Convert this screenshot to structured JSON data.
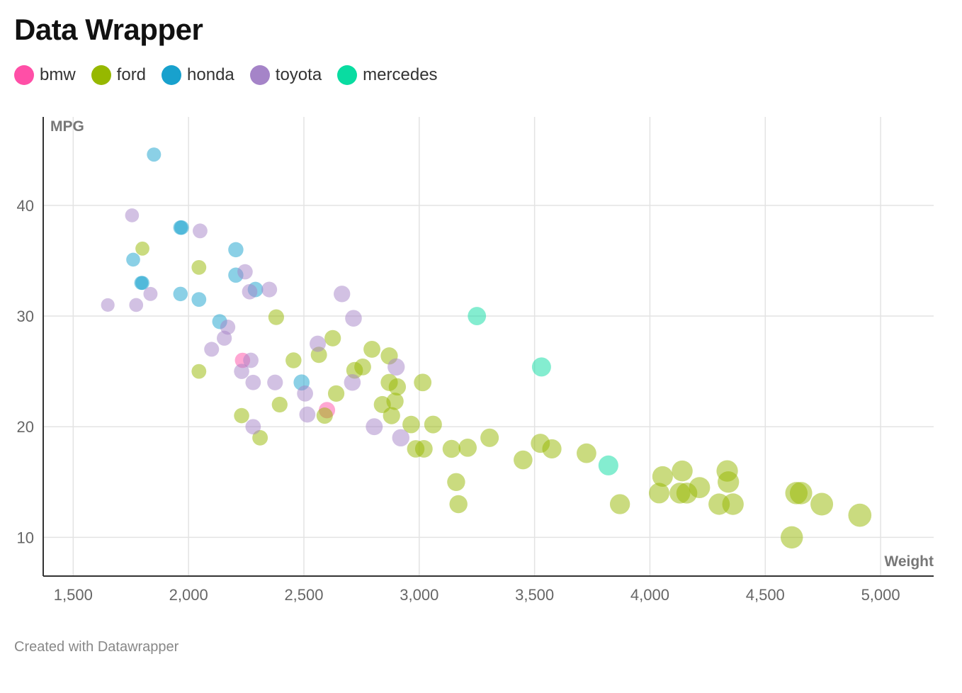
{
  "header": {
    "title": "Data Wrapper"
  },
  "legend": [
    {
      "label": "bmw",
      "color": "#ff4fa7"
    },
    {
      "label": "ford",
      "color": "#96b800"
    },
    {
      "label": "honda",
      "color": "#18a1cd"
    },
    {
      "label": "toyota",
      "color": "#a584c8"
    },
    {
      "label": "mercedes",
      "color": "#09dca1"
    }
  ],
  "footer": {
    "credit": "Created with Datawrapper"
  },
  "chart_data": {
    "type": "scatter",
    "title": "Data Wrapper",
    "xlabel": "Weight",
    "ylabel": "MPG",
    "xlim": [
      1370,
      5230
    ],
    "ylim": [
      6.5,
      48
    ],
    "xticks": [
      1500,
      2000,
      2500,
      3000,
      3500,
      4000,
      4500,
      5000
    ],
    "xtick_labels": [
      "1,500",
      "2,000",
      "2,500",
      "3,000",
      "3,500",
      "4,000",
      "4,500",
      "5,000"
    ],
    "yticks": [
      10,
      20,
      30,
      40
    ],
    "ytick_labels": [
      "10",
      "20",
      "30",
      "40"
    ],
    "grid": true,
    "legend_position": "top-left",
    "series": [
      {
        "name": "bmw",
        "color": "#ff4fa7",
        "points": [
          [
            2234,
            26
          ],
          [
            2600,
            21.5
          ]
        ]
      },
      {
        "name": "ford",
        "color": "#96b800",
        "points": [
          [
            1800,
            36.1
          ],
          [
            2045,
            34.4
          ],
          [
            2045,
            25
          ],
          [
            2230,
            21
          ],
          [
            2310,
            19
          ],
          [
            2380,
            29.9
          ],
          [
            2395,
            22
          ],
          [
            2455,
            26
          ],
          [
            2565,
            26.5
          ],
          [
            2590,
            21
          ],
          [
            2625,
            28
          ],
          [
            2640,
            23
          ],
          [
            2720,
            25.1
          ],
          [
            2755,
            25.4
          ],
          [
            2795,
            27
          ],
          [
            2840,
            22
          ],
          [
            2870,
            26.4
          ],
          [
            2870,
            24
          ],
          [
            2880,
            21
          ],
          [
            2895,
            22.3
          ],
          [
            2905,
            23.6
          ],
          [
            2965,
            20.2
          ],
          [
            2985,
            18
          ],
          [
            3015,
            24
          ],
          [
            3020,
            18
          ],
          [
            3060,
            20.2
          ],
          [
            3140,
            18
          ],
          [
            3160,
            15
          ],
          [
            3170,
            13
          ],
          [
            3210,
            18.1
          ],
          [
            3305,
            19
          ],
          [
            3450,
            17
          ],
          [
            3525,
            18.5
          ],
          [
            3575,
            18
          ],
          [
            3725,
            17.6
          ],
          [
            3870,
            13
          ],
          [
            4040,
            14
          ],
          [
            4055,
            15.5
          ],
          [
            4130,
            14
          ],
          [
            4140,
            16
          ],
          [
            4160,
            14
          ],
          [
            4215,
            14.5
          ],
          [
            4300,
            13
          ],
          [
            4335,
            16
          ],
          [
            4340,
            15
          ],
          [
            4360,
            13
          ],
          [
            4615,
            10
          ],
          [
            4635,
            14
          ],
          [
            4655,
            14
          ],
          [
            4745,
            13
          ],
          [
            4910,
            12
          ]
        ]
      },
      {
        "name": "honda",
        "color": "#18a1cd",
        "points": [
          [
            1850,
            44.6
          ],
          [
            1760,
            35.1
          ],
          [
            1795,
            33
          ],
          [
            1800,
            33
          ],
          [
            1965,
            38
          ],
          [
            1970,
            38
          ],
          [
            1965,
            32
          ],
          [
            2045,
            31.5
          ],
          [
            2205,
            36
          ],
          [
            2205,
            33.7
          ],
          [
            2290,
            32.4
          ],
          [
            2135,
            29.5
          ],
          [
            2490,
            24
          ]
        ]
      },
      {
        "name": "toyota",
        "color": "#a584c8",
        "points": [
          [
            1755,
            39.1
          ],
          [
            1650,
            31
          ],
          [
            1773,
            31
          ],
          [
            1835,
            32
          ],
          [
            2050,
            37.7
          ],
          [
            2155,
            28
          ],
          [
            2170,
            29
          ],
          [
            2100,
            27
          ],
          [
            2245,
            34
          ],
          [
            2265,
            32.2
          ],
          [
            2350,
            32.4
          ],
          [
            2230,
            25
          ],
          [
            2270,
            26
          ],
          [
            2280,
            24
          ],
          [
            2280,
            20
          ],
          [
            2375,
            24
          ],
          [
            2505,
            23
          ],
          [
            2515,
            21.1
          ],
          [
            2560,
            27.5
          ],
          [
            2665,
            32
          ],
          [
            2715,
            29.8
          ],
          [
            2710,
            24
          ],
          [
            2805,
            20
          ],
          [
            2900,
            25.4
          ],
          [
            2920,
            19
          ]
        ]
      },
      {
        "name": "mercedes",
        "color": "#09dca1",
        "points": [
          [
            3250,
            30
          ],
          [
            3530,
            25.4
          ],
          [
            3820,
            16.5
          ]
        ]
      }
    ]
  }
}
